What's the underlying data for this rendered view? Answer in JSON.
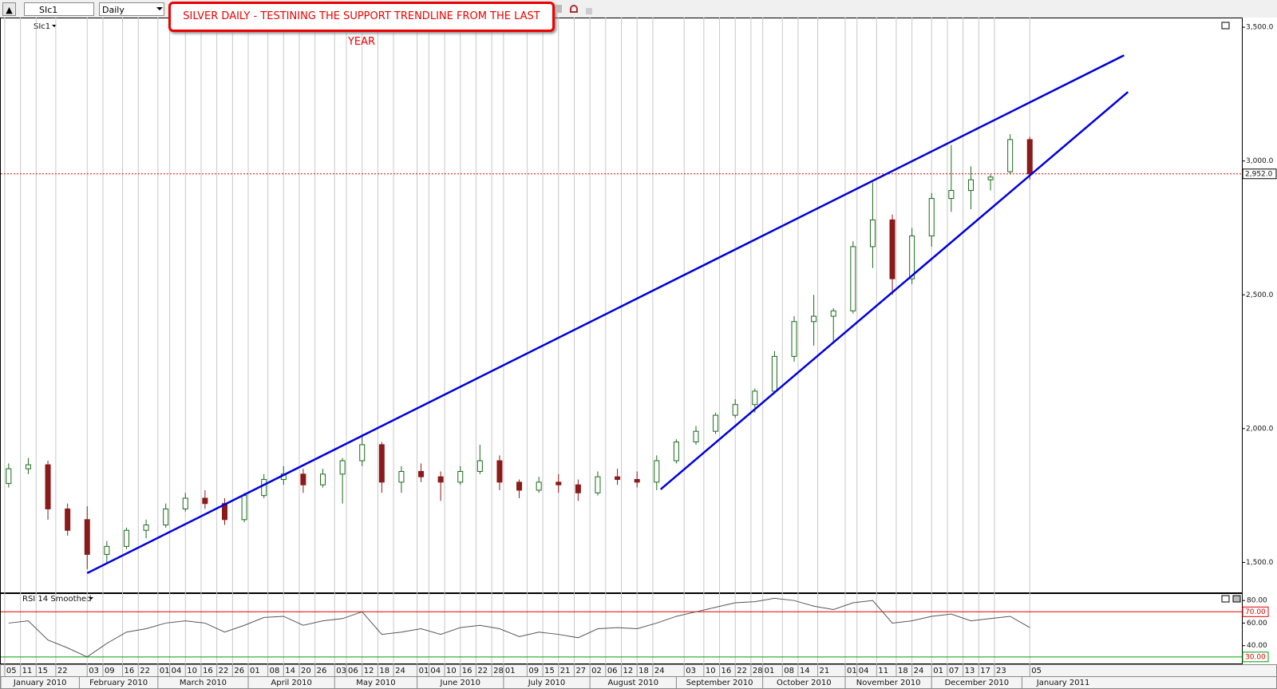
{
  "toolbar": {
    "symbol": "SIc1",
    "interval": "Daily"
  },
  "annotation": "SILVER DAILY - TESTINING THE SUPPORT TRENDLINE FROM THE LAST YEAR",
  "chart_data": [
    {
      "type": "candlestick",
      "legend_label": "SIc1",
      "x": [
        "2010-01-06",
        "2010-01-13",
        "2010-01-20",
        "2010-01-27",
        "2010-02-03",
        "2010-02-10",
        "2010-02-17",
        "2010-02-24",
        "2010-03-03",
        "2010-03-10",
        "2010-03-17",
        "2010-03-24",
        "2010-03-31",
        "2010-04-07",
        "2010-04-14",
        "2010-04-21",
        "2010-04-28",
        "2010-05-05",
        "2010-05-12",
        "2010-05-19",
        "2010-05-26",
        "2010-06-02",
        "2010-06-09",
        "2010-06-16",
        "2010-06-23",
        "2010-06-30",
        "2010-07-07",
        "2010-07-14",
        "2010-07-21",
        "2010-07-28",
        "2010-08-04",
        "2010-08-11",
        "2010-08-18",
        "2010-08-25",
        "2010-09-01",
        "2010-09-08",
        "2010-09-15",
        "2010-09-22",
        "2010-09-29",
        "2010-10-06",
        "2010-10-13",
        "2010-10-20",
        "2010-10-27",
        "2010-11-03",
        "2010-11-10",
        "2010-11-17",
        "2010-11-24",
        "2010-12-01",
        "2010-12-08",
        "2010-12-15",
        "2010-12-22",
        "2010-12-29",
        "2011-01-05"
      ],
      "open": [
        1795,
        1850,
        1865,
        1700,
        1660,
        1530,
        1560,
        1620,
        1640,
        1700,
        1740,
        1720,
        1660,
        1750,
        1810,
        1830,
        1790,
        1830,
        1880,
        1940,
        1800,
        1840,
        1820,
        1800,
        1840,
        1880,
        1800,
        1770,
        1800,
        1790,
        1760,
        1820,
        1810,
        1800,
        1880,
        1950,
        1990,
        2050,
        2090,
        2140,
        2270,
        2400,
        2420,
        2440,
        2680,
        2780,
        2560,
        2720,
        2860,
        2890,
        2930,
        2960,
        3080
      ],
      "high": [
        1870,
        1890,
        1880,
        1720,
        1710,
        1580,
        1630,
        1660,
        1720,
        1760,
        1770,
        1740,
        1760,
        1830,
        1860,
        1850,
        1850,
        1890,
        1980,
        1950,
        1860,
        1870,
        1840,
        1860,
        1940,
        1900,
        1810,
        1820,
        1830,
        1810,
        1840,
        1850,
        1840,
        1900,
        1960,
        2010,
        2060,
        2110,
        2150,
        2290,
        2420,
        2500,
        2450,
        2700,
        2920,
        2800,
        2750,
        2880,
        3060,
        2980,
        2950,
        3100,
        3090
      ],
      "low": [
        1780,
        1830,
        1660,
        1600,
        1475,
        1500,
        1550,
        1590,
        1630,
        1690,
        1700,
        1640,
        1650,
        1740,
        1790,
        1760,
        1780,
        1720,
        1860,
        1760,
        1760,
        1800,
        1730,
        1790,
        1830,
        1770,
        1740,
        1760,
        1760,
        1730,
        1750,
        1790,
        1780,
        1770,
        1870,
        1940,
        1980,
        2040,
        2060,
        2130,
        2250,
        2310,
        2320,
        2430,
        2600,
        2500,
        2540,
        2680,
        2810,
        2820,
        2890,
        2950,
        2930
      ],
      "close": [
        1850,
        1865,
        1700,
        1620,
        1530,
        1560,
        1620,
        1640,
        1700,
        1740,
        1720,
        1660,
        1750,
        1810,
        1830,
        1790,
        1830,
        1880,
        1940,
        1800,
        1840,
        1820,
        1800,
        1840,
        1880,
        1800,
        1770,
        1800,
        1790,
        1760,
        1820,
        1810,
        1800,
        1880,
        1950,
        1990,
        2050,
        2090,
        2140,
        2270,
        2400,
        2420,
        2440,
        2680,
        2780,
        2560,
        2720,
        2860,
        2890,
        2930,
        2940,
        3080,
        2952
      ],
      "up_color": "#1a6a1a",
      "down_color": "#8b1a1a",
      "xlim": [
        "2010-01-04",
        "2011-03-22"
      ],
      "ylim": [
        1388,
        3536
      ],
      "yticks": [
        {
          "value": 1500,
          "label": "1,500.0"
        },
        {
          "value": 2000,
          "label": "2,000.0"
        },
        {
          "value": 2500,
          "label": "2,500.0"
        },
        {
          "value": 3000,
          "label": "3,000.0"
        },
        {
          "value": 3500,
          "label": "3,500.0"
        }
      ],
      "current_price": {
        "value": 2952,
        "label": "2,952.0",
        "color": "#e00000"
      },
      "trendlines": [
        {
          "x": [
            "2010-02-03",
            "2011-02-08"
          ],
          "y": [
            1460,
            3395
          ]
        },
        {
          "x": [
            "2010-08-26",
            "2011-02-09"
          ],
          "y": [
            1773,
            3258
          ]
        }
      ],
      "trendline_color": "#0000dd",
      "xticks": [
        {
          "value": "2010-01-05",
          "label": "05"
        },
        {
          "value": "2010-01-11",
          "label": "11"
        },
        {
          "value": "2010-01-15",
          "label": "15"
        },
        {
          "value": "2010-01-22",
          "label": "22"
        },
        {
          "value": "2010-02-03",
          "label": "03"
        },
        {
          "value": "2010-02-09",
          "label": "09"
        },
        {
          "value": "2010-02-16",
          "label": "16"
        },
        {
          "value": "2010-02-22",
          "label": "22"
        },
        {
          "value": "2010-03-01",
          "label": "01"
        },
        {
          "value": "2010-03-04",
          "label": "04"
        },
        {
          "value": "2010-03-10",
          "label": "10"
        },
        {
          "value": "2010-03-16",
          "label": "16"
        },
        {
          "value": "2010-03-22",
          "label": "22"
        },
        {
          "value": "2010-03-26",
          "label": "26"
        },
        {
          "value": "2010-04-01",
          "label": "01"
        },
        {
          "value": "2010-04-08",
          "label": "08"
        },
        {
          "value": "2010-04-14",
          "label": "14"
        },
        {
          "value": "2010-04-20",
          "label": "20"
        },
        {
          "value": "2010-04-26",
          "label": "26"
        },
        {
          "value": "2010-05-03",
          "label": "03"
        },
        {
          "value": "2010-05-06",
          "label": "06"
        },
        {
          "value": "2010-05-12",
          "label": "12"
        },
        {
          "value": "2010-05-18",
          "label": "18"
        },
        {
          "value": "2010-05-24",
          "label": "24"
        },
        {
          "value": "2010-06-01",
          "label": "01"
        },
        {
          "value": "2010-06-04",
          "label": "04"
        },
        {
          "value": "2010-06-10",
          "label": "10"
        },
        {
          "value": "2010-06-16",
          "label": "16"
        },
        {
          "value": "2010-06-22",
          "label": "22"
        },
        {
          "value": "2010-06-28",
          "label": "28"
        },
        {
          "value": "2010-07-01",
          "label": "01"
        },
        {
          "value": "2010-07-09",
          "label": "09"
        },
        {
          "value": "2010-07-15",
          "label": "15"
        },
        {
          "value": "2010-07-21",
          "label": "21"
        },
        {
          "value": "2010-07-27",
          "label": "27"
        },
        {
          "value": "2010-08-02",
          "label": "02"
        },
        {
          "value": "2010-08-06",
          "label": "06"
        },
        {
          "value": "2010-08-12",
          "label": "12"
        },
        {
          "value": "2010-08-18",
          "label": "18"
        },
        {
          "value": "2010-08-24",
          "label": "24"
        },
        {
          "value": "2010-09-03",
          "label": "03"
        },
        {
          "value": "2010-09-10",
          "label": "10"
        },
        {
          "value": "2010-09-16",
          "label": "16"
        },
        {
          "value": "2010-09-22",
          "label": "22"
        },
        {
          "value": "2010-09-28",
          "label": "28"
        },
        {
          "value": "2010-10-01",
          "label": "01"
        },
        {
          "value": "2010-10-08",
          "label": "08"
        },
        {
          "value": "2010-10-14",
          "label": "14"
        },
        {
          "value": "2010-10-21",
          "label": "21"
        },
        {
          "value": "2010-11-01",
          "label": "01"
        },
        {
          "value": "2010-11-04",
          "label": "04"
        },
        {
          "value": "2010-11-11",
          "label": "11"
        },
        {
          "value": "2010-11-18",
          "label": "18"
        },
        {
          "value": "2010-11-24",
          "label": "24"
        },
        {
          "value": "2010-12-01",
          "label": "01"
        },
        {
          "value": "2010-12-07",
          "label": "07"
        },
        {
          "value": "2010-12-13",
          "label": "13"
        },
        {
          "value": "2010-12-17",
          "label": "17"
        },
        {
          "value": "2010-12-23",
          "label": "23"
        },
        {
          "value": "2011-01-05",
          "label": "05"
        }
      ],
      "months": [
        {
          "value": "2010-01",
          "label": "January 2010"
        },
        {
          "value": "2010-02",
          "label": "February 2010"
        },
        {
          "value": "2010-03",
          "label": "March 2010"
        },
        {
          "value": "2010-04",
          "label": "April 2010"
        },
        {
          "value": "2010-05",
          "label": "May 2010"
        },
        {
          "value": "2010-06",
          "label": "June 2010"
        },
        {
          "value": "2010-07",
          "label": "July 2010"
        },
        {
          "value": "2010-08",
          "label": "August 2010"
        },
        {
          "value": "2010-09",
          "label": "September 2010"
        },
        {
          "value": "2010-10",
          "label": "October 2010"
        },
        {
          "value": "2010-11",
          "label": "November 2010"
        },
        {
          "value": "2010-12",
          "label": "December 2010"
        },
        {
          "value": "2011-01",
          "label": "January 2011"
        }
      ]
    },
    {
      "type": "line",
      "title": "RSI 14 Smoothed",
      "color": "#555555",
      "values": [
        60,
        62,
        45,
        38,
        30,
        42,
        52,
        55,
        60,
        62,
        60,
        52,
        58,
        65,
        66,
        58,
        62,
        64,
        70,
        50,
        52,
        55,
        50,
        56,
        58,
        55,
        48,
        52,
        50,
        47,
        55,
        56,
        55,
        60,
        66,
        70,
        74,
        78,
        79,
        82,
        80,
        75,
        72,
        78,
        80,
        60,
        62,
        66,
        68,
        62,
        64,
        66,
        56
      ],
      "ylim": [
        23.5,
        86.5
      ],
      "yticks": [
        {
          "value": 80,
          "label": "80.00"
        },
        {
          "value": 60,
          "label": "60.00"
        },
        {
          "value": 40,
          "label": "40.00"
        }
      ],
      "overbought": {
        "value": 70,
        "label": "70.00",
        "color": "#e00000"
      },
      "oversold": {
        "value": 30,
        "label": "30.00",
        "color": "#00a000"
      }
    }
  ]
}
